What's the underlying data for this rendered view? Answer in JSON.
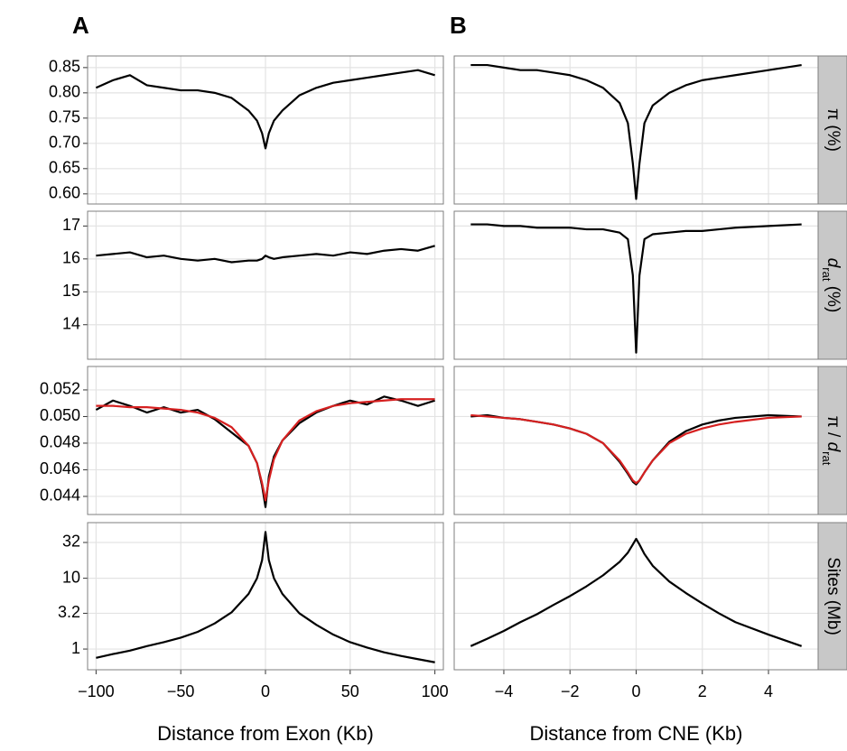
{
  "chart_data": [
    {
      "type": "line",
      "title": "A",
      "x": [
        -100,
        -90,
        -80,
        -70,
        -60,
        -50,
        -40,
        -30,
        -20,
        -10,
        -5,
        -2,
        0,
        2,
        5,
        10,
        20,
        30,
        40,
        50,
        60,
        70,
        80,
        90,
        100
      ],
      "series": [
        {
          "color": "#000000",
          "values": [
            0.81,
            0.825,
            0.835,
            0.815,
            0.81,
            0.805,
            0.805,
            0.8,
            0.79,
            0.765,
            0.745,
            0.72,
            0.69,
            0.72,
            0.745,
            0.765,
            0.795,
            0.81,
            0.82,
            0.825,
            0.83,
            0.835,
            0.84,
            0.845,
            0.835
          ]
        }
      ],
      "xlim": [
        -105,
        105
      ],
      "ylim": [
        0.58,
        0.873
      ],
      "yticks": [
        {
          "value": 0.6,
          "label": "0.60"
        },
        0.65,
        {
          "value": 0.7,
          "label": "0.70"
        },
        0.75,
        {
          "value": 0.8,
          "label": "0.80"
        },
        0.85
      ],
      "grid": true
    },
    {
      "type": "line",
      "title": "B",
      "x": [
        -5,
        -4.5,
        -4,
        -3.5,
        -3,
        -2.5,
        -2,
        -1.5,
        -1,
        -0.5,
        -0.25,
        -0.1,
        0,
        0.1,
        0.25,
        0.5,
        1,
        1.5,
        2,
        2.5,
        3,
        4,
        5
      ],
      "series": [
        {
          "color": "#000000",
          "values": [
            0.855,
            0.855,
            0.85,
            0.845,
            0.845,
            0.84,
            0.835,
            0.825,
            0.81,
            0.78,
            0.74,
            0.66,
            0.59,
            0.66,
            0.74,
            0.775,
            0.8,
            0.815,
            0.825,
            0.83,
            0.835,
            0.845,
            0.855
          ]
        }
      ],
      "xlim": [
        -5.5,
        5.5
      ],
      "ylim": [
        0.58,
        0.873
      ],
      "grid": true,
      "strip": [
        {
          "text": "π (%)"
        }
      ]
    },
    {
      "type": "line",
      "x": [
        -100,
        -90,
        -80,
        -70,
        -60,
        -50,
        -40,
        -30,
        -20,
        -10,
        -5,
        -2,
        0,
        2,
        5,
        10,
        20,
        30,
        40,
        50,
        60,
        70,
        80,
        90,
        100
      ],
      "series": [
        {
          "color": "#000000",
          "values": [
            16.1,
            16.15,
            16.2,
            16.05,
            16.1,
            16.0,
            15.95,
            16.0,
            15.9,
            15.95,
            15.95,
            16.0,
            16.1,
            16.05,
            16.0,
            16.05,
            16.1,
            16.15,
            16.1,
            16.2,
            16.15,
            16.25,
            16.3,
            16.25,
            16.4
          ]
        }
      ],
      "xlim": [
        -105,
        105
      ],
      "ylim": [
        12.95,
        17.45
      ],
      "yticks": [
        14,
        15,
        16,
        17
      ],
      "grid": true
    },
    {
      "type": "line",
      "x": [
        -5,
        -4.5,
        -4,
        -3.5,
        -3,
        -2.5,
        -2,
        -1.5,
        -1,
        -0.5,
        -0.25,
        -0.1,
        0,
        0.1,
        0.25,
        0.5,
        1,
        1.5,
        2,
        2.5,
        3,
        4,
        5
      ],
      "series": [
        {
          "color": "#000000",
          "values": [
            17.05,
            17.05,
            17.0,
            17.0,
            16.95,
            16.95,
            16.95,
            16.9,
            16.9,
            16.8,
            16.6,
            15.5,
            13.15,
            15.5,
            16.6,
            16.75,
            16.8,
            16.85,
            16.85,
            16.9,
            16.95,
            17.0,
            17.05
          ]
        }
      ],
      "xlim": [
        -5.5,
        5.5
      ],
      "ylim": [
        12.95,
        17.45
      ],
      "grid": true,
      "strip": [
        {
          "text": "d",
          "style": "italic"
        },
        {
          "text": "rat",
          "style": "sub"
        },
        {
          "text": " (%)"
        }
      ]
    },
    {
      "type": "line",
      "x": [
        -100,
        -90,
        -80,
        -70,
        -60,
        -50,
        -40,
        -30,
        -20,
        -10,
        -5,
        -2,
        0,
        2,
        5,
        10,
        20,
        30,
        40,
        50,
        60,
        70,
        80,
        90,
        100
      ],
      "series": [
        {
          "color": "#000000",
          "values": [
            0.0505,
            0.0512,
            0.0508,
            0.0503,
            0.0507,
            0.0503,
            0.0505,
            0.0498,
            0.0488,
            0.0478,
            0.0465,
            0.0448,
            0.0432,
            0.0455,
            0.047,
            0.0482,
            0.0495,
            0.0503,
            0.0508,
            0.0512,
            0.0509,
            0.0515,
            0.0512,
            0.0508,
            0.0512
          ]
        },
        {
          "color": "#d62020",
          "values": [
            0.0508,
            0.0508,
            0.0507,
            0.0507,
            0.0506,
            0.0505,
            0.0503,
            0.0499,
            0.0492,
            0.0478,
            0.0465,
            0.045,
            0.0437,
            0.0452,
            0.0468,
            0.0482,
            0.0497,
            0.0504,
            0.0508,
            0.051,
            0.0511,
            0.0512,
            0.0513,
            0.0513,
            0.0513
          ]
        }
      ],
      "xlim": [
        -105,
        105
      ],
      "ylim": [
        0.04264,
        0.05376
      ],
      "yticks": [
        0.044,
        0.046,
        0.048,
        {
          "value": 0.05,
          "label": "0.050"
        },
        0.052
      ],
      "grid": true
    },
    {
      "type": "line",
      "x": [
        -5,
        -4.5,
        -4,
        -3.5,
        -3,
        -2.5,
        -2,
        -1.5,
        -1,
        -0.5,
        -0.25,
        -0.1,
        0,
        0.1,
        0.25,
        0.5,
        1,
        1.5,
        2,
        2.5,
        3,
        4,
        5
      ],
      "series": [
        {
          "color": "#000000",
          "values": [
            0.05,
            0.0501,
            0.0499,
            0.0498,
            0.0496,
            0.0494,
            0.0491,
            0.0487,
            0.048,
            0.0466,
            0.0457,
            0.0451,
            0.0449,
            0.0452,
            0.0458,
            0.0467,
            0.0481,
            0.0489,
            0.0494,
            0.0497,
            0.0499,
            0.0501,
            0.05
          ]
        },
        {
          "color": "#d62020",
          "values": [
            0.0501,
            0.05,
            0.0499,
            0.0498,
            0.0496,
            0.0494,
            0.0491,
            0.0487,
            0.048,
            0.0467,
            0.0458,
            0.0452,
            0.045,
            0.0452,
            0.0458,
            0.0467,
            0.048,
            0.0487,
            0.0491,
            0.0494,
            0.0496,
            0.0499,
            0.05
          ]
        }
      ],
      "xlim": [
        -5.5,
        5.5
      ],
      "ylim": [
        0.04264,
        0.05376
      ],
      "grid": true,
      "strip": [
        {
          "text": "π / "
        },
        {
          "text": "d",
          "style": "italic"
        },
        {
          "text": "rat",
          "style": "sub"
        }
      ]
    },
    {
      "type": "line",
      "x": [
        -100,
        -90,
        -80,
        -70,
        -60,
        -50,
        -40,
        -30,
        -20,
        -10,
        -5,
        -2,
        0,
        2,
        5,
        10,
        20,
        30,
        40,
        50,
        60,
        70,
        80,
        90,
        100
      ],
      "series": [
        {
          "color": "#000000",
          "values": [
            0.75,
            0.85,
            0.95,
            1.1,
            1.25,
            1.45,
            1.75,
            2.3,
            3.3,
            6,
            10,
            18,
            45,
            18,
            10,
            6,
            3.2,
            2.2,
            1.6,
            1.25,
            1.05,
            0.9,
            0.8,
            0.72,
            0.65
          ]
        }
      ],
      "xlim": [
        -105,
        105
      ],
      "ylim": [
        0.51,
        61
      ],
      "log_y": true,
      "yticks": [
        1,
        3.2,
        10,
        32
      ],
      "grid": true,
      "xticks": [
        {
          "value": -100,
          "label": "−100"
        },
        {
          "value": -50,
          "label": "−50"
        },
        0,
        50,
        100
      ],
      "xlabel": "Distance from Exon (Kb)"
    },
    {
      "type": "line",
      "x": [
        -5,
        -4.5,
        -4,
        -3.5,
        -3,
        -2.5,
        -2,
        -1.5,
        -1,
        -0.5,
        -0.25,
        -0.1,
        0,
        0.1,
        0.25,
        0.5,
        1,
        1.5,
        2,
        2.5,
        3,
        4,
        5
      ],
      "series": [
        {
          "color": "#000000",
          "values": [
            1.1,
            1.4,
            1.8,
            2.4,
            3.1,
            4.2,
            5.6,
            7.7,
            11,
            17,
            23,
            30,
            36,
            30,
            22,
            15,
            9,
            6.2,
            4.4,
            3.2,
            2.4,
            1.6,
            1.1
          ]
        }
      ],
      "xlim": [
        -5.5,
        5.5
      ],
      "ylim": [
        0.51,
        61
      ],
      "log_y": true,
      "grid": true,
      "xticks": [
        {
          "value": -4,
          "label": "−4"
        },
        {
          "value": -2,
          "label": "−2"
        },
        0,
        2,
        4
      ],
      "xlabel": "Distance from CNE (Kb)",
      "strip": [
        {
          "text": "Sites (Mb)"
        }
      ]
    }
  ]
}
